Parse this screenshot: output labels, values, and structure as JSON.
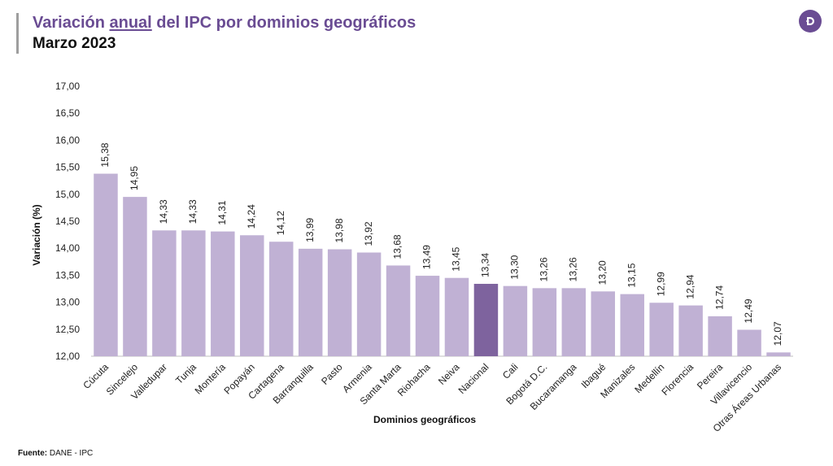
{
  "header": {
    "title_prefix": "Variación ",
    "title_underlined": "anual",
    "title_suffix": " del IPC por dominios geográficos",
    "subtitle": "Marzo 2023",
    "logo_icon": "dane-logo-icon"
  },
  "footer": {
    "source_label": "Fuente:",
    "source_value": " DANE - IPC"
  },
  "colors": {
    "bar": "#c0b1d4",
    "highlight": "#7e639e",
    "title": "#6a4c93"
  },
  "chart_data": {
    "type": "bar",
    "xlabel": "Dominios geográficos",
    "ylabel": "Variación (%)",
    "ylim": [
      12.0,
      17.0
    ],
    "yticks": [
      "12,00",
      "12,50",
      "13,00",
      "13,50",
      "14,00",
      "14,50",
      "15,00",
      "15,50",
      "16,00",
      "16,50",
      "17,00"
    ],
    "grid": false,
    "highlight_category": "Nacional",
    "categories": [
      "Cúcuta",
      "Sincelejo",
      "Valledupar",
      "Tunja",
      "Montería",
      "Popayán",
      "Cartagena",
      "Barranquilla",
      "Pasto",
      "Armenia",
      "Santa Marta",
      "Riohacha",
      "Neiva",
      "Nacional",
      "Cali",
      "Bogotá D.C.",
      "Bucaramanga",
      "Ibagué",
      "Manizales",
      "Medellín",
      "Florencia",
      "Pereira",
      "Villavicencio",
      "Otras Áreas Urbanas"
    ],
    "values": [
      15.38,
      14.95,
      14.33,
      14.33,
      14.31,
      14.24,
      14.12,
      13.99,
      13.98,
      13.92,
      13.68,
      13.49,
      13.45,
      13.34,
      13.3,
      13.26,
      13.26,
      13.2,
      13.15,
      12.99,
      12.94,
      12.74,
      12.49,
      12.07
    ],
    "value_labels": [
      "15,38",
      "14,95",
      "14,33",
      "14,33",
      "14,31",
      "14,24",
      "14,12",
      "13,99",
      "13,98",
      "13,92",
      "13,68",
      "13,49",
      "13,45",
      "13,34",
      "13,30",
      "13,26",
      "13,26",
      "13,20",
      "13,15",
      "12,99",
      "12,94",
      "12,74",
      "12,49",
      "12,07"
    ]
  }
}
